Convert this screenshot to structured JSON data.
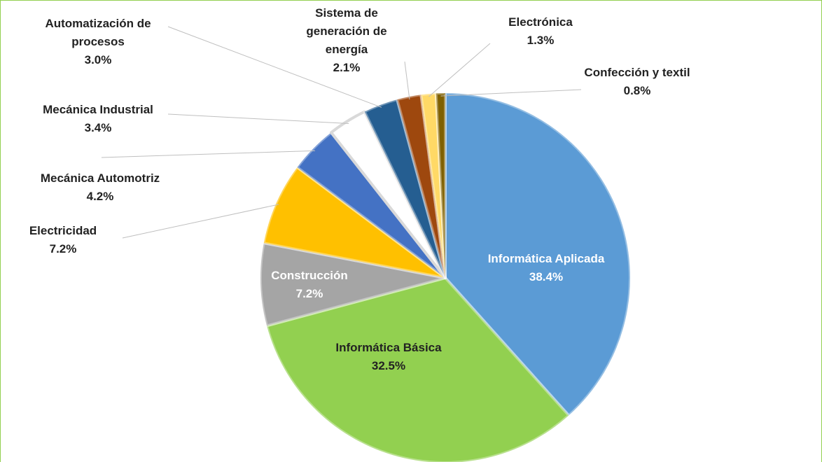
{
  "chart_data": {
    "type": "pie",
    "categories": [
      "Informática Aplicada",
      "Informática Básica",
      "Construcción",
      "Electricidad",
      "Mecánica Automotriz",
      "Mecánica Industrial",
      "Automatización de procesos",
      "Sistema de generación de energía",
      "Electrónica",
      "Confección y textil"
    ],
    "values": [
      38.4,
      32.5,
      7.2,
      7.2,
      4.2,
      3.4,
      3.0,
      2.1,
      1.3,
      0.8
    ],
    "value_labels": [
      "38.4%",
      "32.5%",
      "7.2%",
      "7.2%",
      "4.2%",
      "3.4%",
      "3.0%",
      "2.1%",
      "1.3%",
      "0.8%"
    ],
    "colors": [
      "#5b9bd5",
      "#92d050",
      "#a5a5a5",
      "#ffc000",
      "#4472c4",
      "#ffffff",
      "#255e91",
      "#9e480e",
      "#ffd966",
      "#7f6000"
    ]
  }
}
